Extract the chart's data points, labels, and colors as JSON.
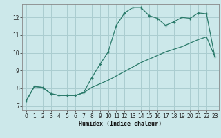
{
  "title": "",
  "xlabel": "Humidex (Indice chaleur)",
  "bg_color": "#cce8ea",
  "grid_color": "#aacdd0",
  "line_color": "#2a7a6a",
  "xlim": [
    -0.5,
    23.5
  ],
  "ylim": [
    6.75,
    12.75
  ],
  "xticks": [
    0,
    1,
    2,
    3,
    4,
    5,
    6,
    7,
    8,
    9,
    10,
    11,
    12,
    13,
    14,
    15,
    16,
    17,
    18,
    19,
    20,
    21,
    22,
    23
  ],
  "yticks": [
    7,
    8,
    9,
    10,
    11,
    12
  ],
  "curve1_x": [
    0,
    1,
    2,
    3,
    4,
    5,
    6,
    7,
    8,
    9,
    10,
    11,
    12,
    13,
    14,
    15,
    16,
    17,
    18,
    19,
    20,
    21,
    22,
    23
  ],
  "curve1_y": [
    7.3,
    8.1,
    8.05,
    7.7,
    7.6,
    7.6,
    7.6,
    7.75,
    8.6,
    9.35,
    10.05,
    11.55,
    12.25,
    12.55,
    12.55,
    12.1,
    11.95,
    11.55,
    11.75,
    12.0,
    11.95,
    12.25,
    12.2,
    9.8
  ],
  "curve2_x": [
    0,
    1,
    2,
    3,
    4,
    5,
    6,
    7,
    8,
    9,
    10,
    11,
    12,
    13,
    14,
    15,
    16,
    17,
    18,
    19,
    20,
    21,
    22,
    23
  ],
  "curve2_y": [
    7.3,
    8.1,
    8.05,
    7.7,
    7.6,
    7.6,
    7.6,
    7.75,
    8.05,
    8.25,
    8.45,
    8.7,
    8.95,
    9.2,
    9.45,
    9.65,
    9.85,
    10.05,
    10.2,
    10.35,
    10.55,
    10.75,
    10.9,
    9.8
  ]
}
